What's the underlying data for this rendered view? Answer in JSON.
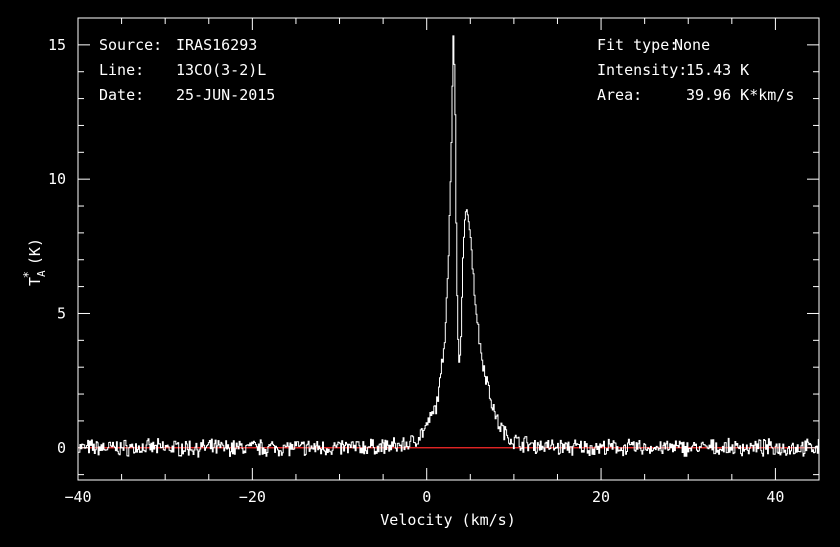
{
  "info_left": {
    "source_label": "Source:",
    "source_value": "IRAS16293",
    "line_label": "Line:",
    "line_value": "13CO(3-2)L",
    "date_label": "Date:",
    "date_value": "25-JUN-2015"
  },
  "info_right": {
    "fit_label": "Fit type:",
    "fit_value": "None",
    "intensity_label": "Intensity:",
    "intensity_value": "15.43 K",
    "area_label": "Area:",
    "area_value": "39.96 K*km/s"
  },
  "chart_data": {
    "type": "line",
    "xlabel": "Velocity (km/s)",
    "ylabel_main": "T",
    "ylabel_sub": "A",
    "ylabel_sup": "*",
    "ylabel_unit": "(K)",
    "xlim": [
      -40,
      45
    ],
    "ylim": [
      -1.2,
      16
    ],
    "xticks": [
      -40,
      -20,
      0,
      20,
      40
    ],
    "yticks": [
      0,
      5,
      10,
      15
    ],
    "baseline": 0,
    "colors": {
      "spectrum": "#ffffff",
      "baseline": "#ff2a2a",
      "axes": "#ffffff",
      "background": "#000000"
    },
    "series": [
      {
        "x": [
          -40,
          -30,
          -20,
          -10,
          -4,
          -2,
          -1,
          0,
          1,
          1.5,
          2,
          2.5,
          2.8,
          3.0,
          3.2,
          3.35,
          3.5,
          3.7,
          3.9,
          4.1,
          4.3,
          4.5,
          4.7,
          5.0,
          5.3,
          5.6,
          6.0,
          6.5,
          7.0,
          7.5,
          8,
          9,
          10,
          12,
          15,
          20,
          30,
          45
        ],
        "values": [
          0,
          0,
          0,
          0,
          0.05,
          0.15,
          0.4,
          0.8,
          1.5,
          2.4,
          4.0,
          7.5,
          11.5,
          15.43,
          13.5,
          8.0,
          4.5,
          2.95,
          4.2,
          7.0,
          8.4,
          8.95,
          8.6,
          7.8,
          6.5,
          5.2,
          4.0,
          3.0,
          2.3,
          1.6,
          1.0,
          0.5,
          0.25,
          0.1,
          0.02,
          0,
          0,
          0
        ]
      }
    ]
  }
}
